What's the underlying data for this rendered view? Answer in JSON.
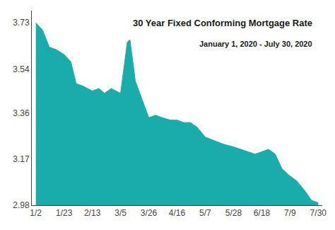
{
  "chart_data": {
    "type": "area",
    "title": "30 Year Fixed Conforming Mortgage Rate",
    "subtitle": "January 1, 2020 - July 30, 2020",
    "x": [
      0,
      5,
      10,
      15,
      21,
      26,
      30,
      35,
      42,
      47,
      51,
      56,
      63,
      68,
      70,
      74,
      84,
      89,
      94,
      100,
      105,
      110,
      115,
      120,
      126,
      131,
      136,
      140,
      147,
      152,
      157,
      163,
      168,
      173,
      178,
      183,
      189,
      194,
      200,
      205,
      210
    ],
    "values": [
      3.73,
      3.7,
      3.63,
      3.62,
      3.6,
      3.57,
      3.48,
      3.47,
      3.45,
      3.46,
      3.44,
      3.46,
      3.44,
      3.65,
      3.66,
      3.49,
      3.34,
      3.35,
      3.34,
      3.33,
      3.33,
      3.32,
      3.32,
      3.3,
      3.26,
      3.25,
      3.24,
      3.23,
      3.22,
      3.21,
      3.2,
      3.19,
      3.2,
      3.21,
      3.19,
      3.13,
      3.1,
      3.08,
      3.04,
      3.0,
      2.99
    ],
    "color": "#1aacab",
    "xlim": [
      -3,
      213
    ],
    "xticks": [
      {
        "value": 0,
        "label": "1/2"
      },
      {
        "value": 21,
        "label": "1/23"
      },
      {
        "value": 42,
        "label": "2/13"
      },
      {
        "value": 63,
        "label": "3/5"
      },
      {
        "value": 84,
        "label": "3/26"
      },
      {
        "value": 105,
        "label": "4/16"
      },
      {
        "value": 126,
        "label": "5/7"
      },
      {
        "value": 147,
        "label": "5/28"
      },
      {
        "value": 168,
        "label": "6/18"
      },
      {
        "value": 189,
        "label": "7/9"
      },
      {
        "value": 210,
        "label": "7/30"
      }
    ],
    "ylim": [
      2.98,
      3.78
    ],
    "yticks": [
      2.98,
      3.17,
      3.36,
      3.54,
      3.73
    ],
    "grid": false
  }
}
